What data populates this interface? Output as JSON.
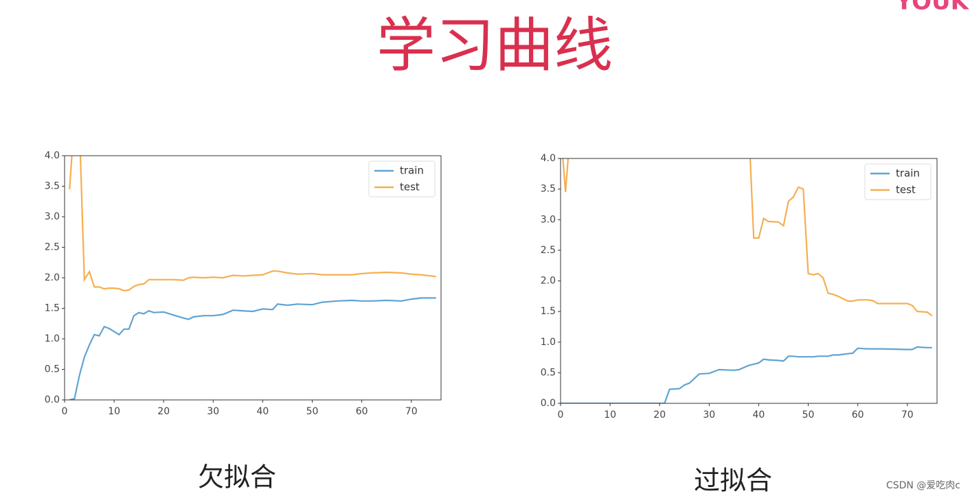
{
  "title": "学习曲线",
  "logo": "YOUK",
  "watermark": "CSDN @爱吃肉c",
  "chart_data": [
    {
      "type": "line",
      "caption": "欠拟合",
      "x": [
        0,
        1,
        2,
        3,
        4,
        5,
        6,
        7,
        8,
        9,
        10,
        11,
        12,
        13,
        14,
        15,
        16,
        17,
        18,
        20,
        22,
        24,
        25,
        26,
        28,
        30,
        32,
        34,
        36,
        38,
        40,
        42,
        43,
        45,
        47,
        50,
        52,
        55,
        58,
        60,
        62,
        65,
        68,
        70,
        72,
        75
      ],
      "series": [
        {
          "name": "train",
          "color": "#5fa3d3",
          "values": [
            null,
            0,
            0.02,
            0.4,
            0.7,
            0.9,
            1.07,
            1.05,
            1.2,
            1.17,
            1.12,
            1.07,
            1.16,
            1.16,
            1.38,
            1.43,
            1.41,
            1.46,
            1.43,
            1.44,
            1.39,
            1.34,
            1.32,
            1.36,
            1.38,
            1.38,
            1.4,
            1.47,
            1.46,
            1.45,
            1.49,
            1.48,
            1.57,
            1.55,
            1.57,
            1.56,
            1.6,
            1.62,
            1.63,
            1.62,
            1.62,
            1.63,
            1.62,
            1.65,
            1.67,
            1.67
          ]
        },
        {
          "name": "test",
          "color": "#f6ae4f",
          "values": [
            null,
            3.45,
            4.6,
            4.5,
            1.97,
            2.1,
            1.85,
            1.85,
            1.82,
            1.83,
            1.83,
            1.82,
            1.79,
            1.8,
            1.86,
            1.89,
            1.9,
            1.97,
            1.97,
            1.97,
            1.97,
            1.96,
            2.0,
            2.01,
            2.0,
            2.01,
            2.0,
            2.04,
            2.03,
            2.04,
            2.05,
            2.11,
            2.11,
            2.08,
            2.06,
            2.07,
            2.05,
            2.05,
            2.05,
            2.07,
            2.08,
            2.09,
            2.08,
            2.06,
            2.05,
            2.02
          ]
        }
      ],
      "xlim": [
        0,
        76
      ],
      "ylim": [
        0,
        4
      ],
      "xticks": [
        0,
        10,
        20,
        30,
        40,
        50,
        60,
        70
      ],
      "yticks": [
        {
          "value": 0,
          "label": "0.0"
        },
        {
          "value": 0.5,
          "label": "0.5"
        },
        {
          "value": 1,
          "label": "1.0"
        },
        {
          "value": 1.5,
          "label": "1.5"
        },
        {
          "value": 2,
          "label": "2.0"
        },
        {
          "value": 2.5,
          "label": "2.5"
        },
        {
          "value": 3,
          "label": "3.0"
        },
        {
          "value": 3.5,
          "label": "3.5"
        },
        {
          "value": 4,
          "label": "4.0"
        }
      ],
      "legend": "upper right"
    },
    {
      "type": "line",
      "caption": "过拟合",
      "x": [
        0,
        1,
        2,
        5,
        10,
        15,
        20,
        21,
        22,
        24,
        25,
        26,
        28,
        30,
        32,
        35,
        36,
        38,
        39,
        40,
        41,
        42,
        44,
        45,
        46,
        47,
        48,
        49,
        50,
        51,
        52,
        53,
        54,
        55,
        56,
        57,
        58,
        59,
        60,
        62,
        63,
        64,
        65,
        70,
        71,
        72,
        74,
        75
      ],
      "series": [
        {
          "name": "train",
          "color": "#5fa3d3",
          "values": [
            0,
            0,
            0,
            0,
            0,
            0,
            0,
            0,
            0.23,
            0.24,
            0.3,
            0.33,
            0.48,
            0.49,
            0.55,
            0.54,
            0.55,
            0.62,
            0.64,
            0.66,
            0.72,
            0.71,
            0.7,
            0.69,
            0.77,
            0.77,
            0.76,
            0.76,
            0.76,
            0.76,
            0.77,
            0.77,
            0.77,
            0.79,
            0.79,
            0.8,
            0.81,
            0.82,
            0.9,
            0.89,
            0.89,
            0.89,
            0.89,
            0.88,
            0.88,
            0.92,
            0.91,
            0.91
          ]
        },
        {
          "name": "test",
          "color": "#f6ae4f",
          "values": [
            4.5,
            3.45,
            4.5,
            null,
            null,
            null,
            null,
            null,
            null,
            null,
            null,
            null,
            null,
            null,
            null,
            null,
            null,
            4.5,
            2.7,
            2.7,
            3.02,
            2.97,
            2.96,
            2.9,
            3.3,
            3.37,
            3.53,
            3.5,
            2.12,
            2.1,
            2.12,
            2.05,
            1.8,
            1.78,
            1.75,
            1.71,
            1.67,
            1.67,
            1.69,
            1.69,
            1.68,
            1.63,
            1.63,
            1.63,
            1.6,
            1.5,
            1.49,
            1.43
          ]
        }
      ],
      "xlim": [
        0,
        76
      ],
      "ylim": [
        0,
        4
      ],
      "xticks": [
        0,
        10,
        20,
        30,
        40,
        50,
        60,
        70
      ],
      "yticks": [
        {
          "value": 0,
          "label": "0.0"
        },
        {
          "value": 0.5,
          "label": "0.5"
        },
        {
          "value": 1,
          "label": "1.0"
        },
        {
          "value": 1.5,
          "label": "1.5"
        },
        {
          "value": 2,
          "label": "2.0"
        },
        {
          "value": 2.5,
          "label": "2.5"
        },
        {
          "value": 3,
          "label": "3.0"
        },
        {
          "value": 3.5,
          "label": "3.5"
        },
        {
          "value": 4,
          "label": "4.0"
        }
      ],
      "legend": "upper right"
    }
  ]
}
